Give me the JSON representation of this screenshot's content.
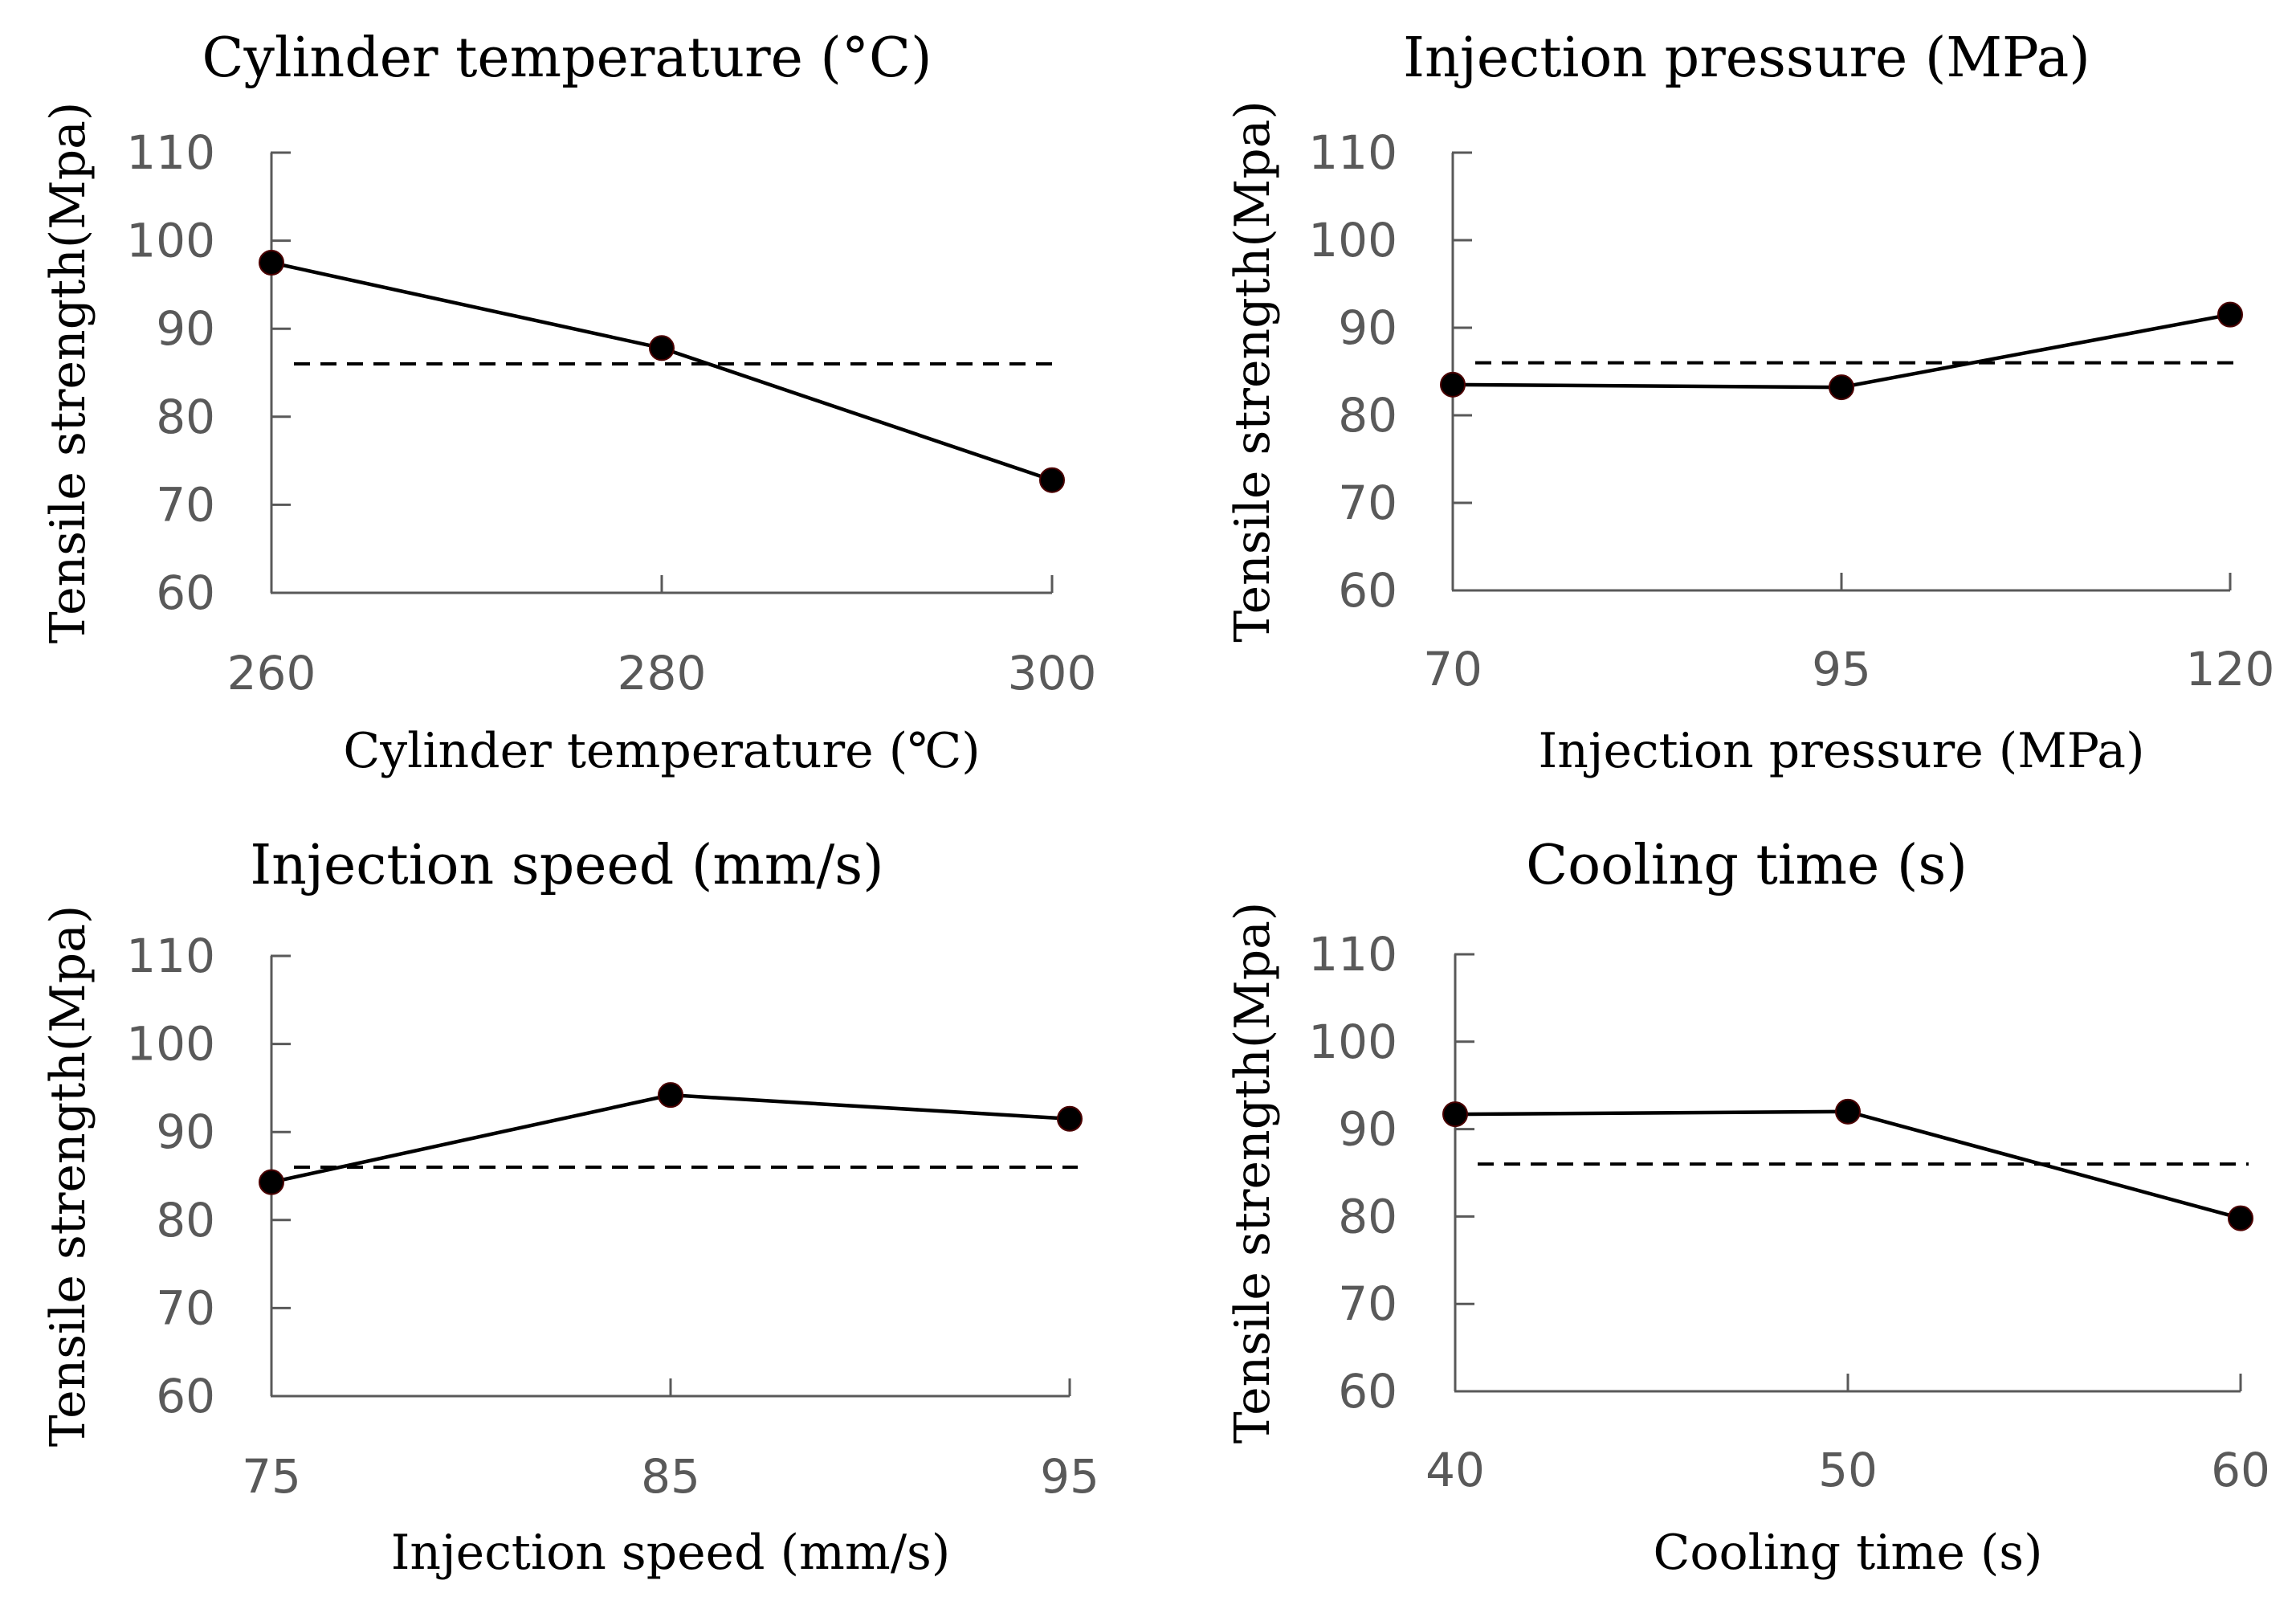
{
  "chart_data": [
    {
      "type": "line",
      "title": "Cylinder temperature (°C)",
      "xlabel": "Cylinder temperature (℃)",
      "ylabel": "Tensile strength(Mpa)",
      "categories": [
        "260",
        "280",
        "300"
      ],
      "values": [
        97.5,
        87.8,
        72.8
      ],
      "reference_line": 86.0,
      "ylim": [
        60,
        110
      ],
      "yticks": [
        "60",
        "70",
        "80",
        "90",
        "100",
        "110"
      ]
    },
    {
      "type": "line",
      "title": "Injection pressure (MPa)",
      "xlabel": "Injection pressure (MPa)",
      "ylabel": "Tensile strength(Mpa)",
      "categories": [
        "70",
        "95",
        "120"
      ],
      "values": [
        83.5,
        83.2,
        91.5
      ],
      "reference_line": 86.0,
      "ylim": [
        60,
        110
      ],
      "yticks": [
        "60",
        "70",
        "80",
        "90",
        "100",
        "110"
      ]
    },
    {
      "type": "line",
      "title": "Injection speed (mm/s)",
      "xlabel": "Injection speed (mm/s)",
      "ylabel": "Tensile strength(Mpa)",
      "categories": [
        "75",
        "85",
        "95"
      ],
      "values": [
        84.3,
        94.2,
        91.5
      ],
      "reference_line": 86.0,
      "ylim": [
        60,
        110
      ],
      "yticks": [
        "60",
        "70",
        "80",
        "90",
        "100",
        "110"
      ]
    },
    {
      "type": "line",
      "title": "Cooling time (s)",
      "xlabel": "Cooling time (s)",
      "ylabel": "Tensile strength(Mpa)",
      "categories": [
        "40",
        "50",
        "60"
      ],
      "values": [
        91.7,
        92.0,
        79.8
      ],
      "reference_line": 86.0,
      "ylim": [
        60,
        110
      ],
      "yticks": [
        "60",
        "70",
        "80",
        "90",
        "100",
        "110"
      ]
    }
  ]
}
